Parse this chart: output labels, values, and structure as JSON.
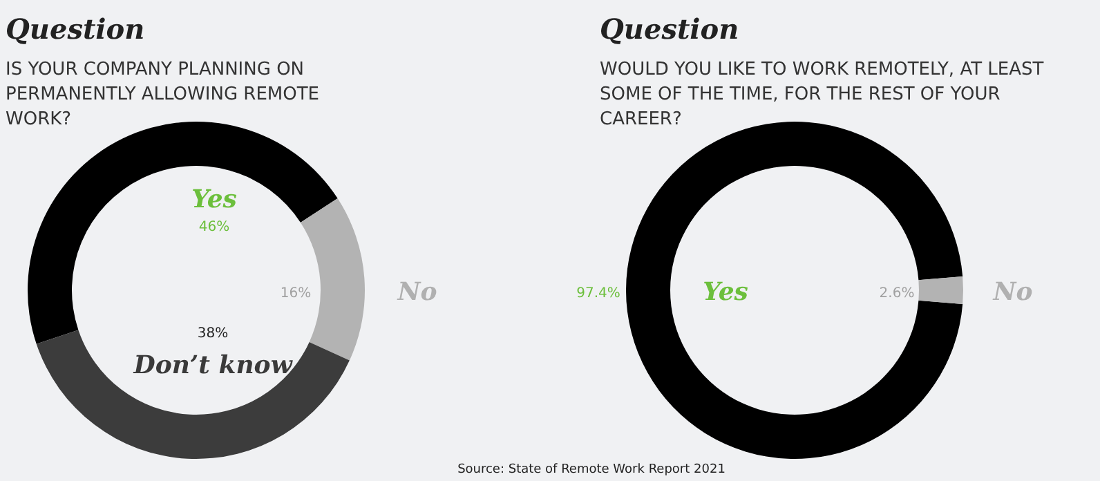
{
  "chart_data": [
    {
      "type": "donut",
      "title": "Question",
      "subtitle": "IS YOUR COMPANY PLANNING ON PERMANENTLY ALLOWING REMOTE WORK?",
      "categories": [
        "Yes",
        "No",
        "Don’t know"
      ],
      "values": [
        46,
        16,
        38
      ],
      "value_labels": [
        "46%",
        "16%",
        "38%"
      ],
      "colors": [
        "#000000",
        "#b3b3b3",
        "#3c3c3c"
      ],
      "annotations": [
        "Source: State of Remote Work Report 2021"
      ]
    },
    {
      "type": "donut",
      "title": "Question",
      "subtitle": "WOULD YOU LIKE TO WORK REMOTELY, AT LEAST SOME OF THE TIME, FOR THE REST OF YOUR CAREER?",
      "categories": [
        "Yes",
        "No"
      ],
      "values": [
        97.4,
        2.6
      ],
      "value_labels": [
        "97.4%",
        "2.6%"
      ],
      "colors": [
        "#000000",
        "#b3b3b3"
      ]
    }
  ]
}
